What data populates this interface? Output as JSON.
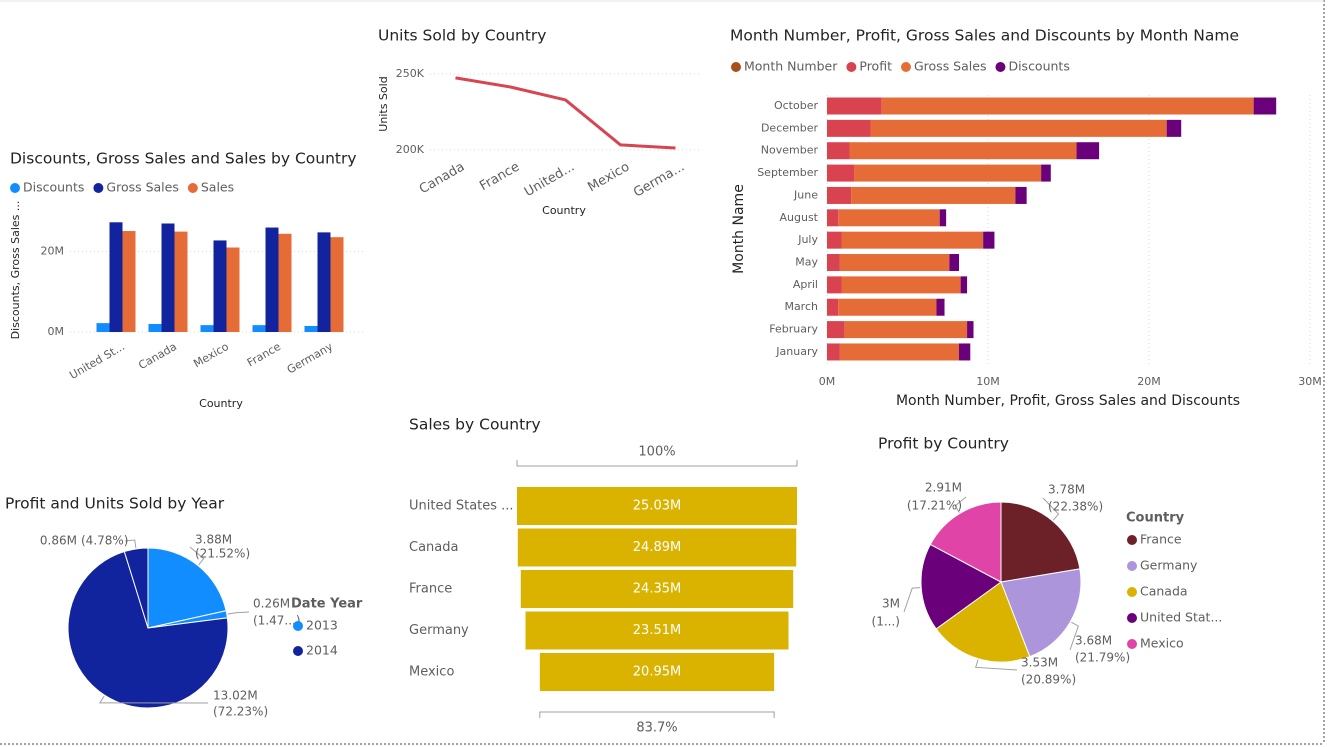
{
  "chart_data": [
    {
      "type": "bar",
      "title": "Discounts, Gross Sales and Sales by Country",
      "x_label": "Country",
      "y_label": "Discounts, Gross Sales ...",
      "categories": [
        "United St...",
        "Canada",
        "Mexico",
        "France",
        "Germany"
      ],
      "series": [
        {
          "name": "Discounts",
          "color": "#118dff",
          "values": [
            2.2,
            2.0,
            1.7,
            1.7,
            1.5
          ]
        },
        {
          "name": "Gross Sales",
          "color": "#12239e",
          "values": [
            27.2,
            26.9,
            22.7,
            25.9,
            24.7
          ]
        },
        {
          "name": "Sales",
          "color": "#e66c37",
          "values": [
            25.03,
            24.89,
            20.95,
            24.35,
            23.51
          ]
        }
      ],
      "ylim": [
        0,
        30
      ],
      "yticks": [
        {
          "value": 0,
          "label": "0M"
        },
        {
          "value": 20,
          "label": "20M"
        }
      ],
      "grid": true,
      "legend": "top-left"
    },
    {
      "type": "line",
      "title": "Units Sold by Country",
      "x_label": "Country",
      "y_label": "Units Sold",
      "categories": [
        "Canada",
        "France",
        "United...",
        "Mexico",
        "Germa..."
      ],
      "values": [
        247.4,
        241.4,
        232.9,
        203.3,
        201.3
      ],
      "color": "#d64550",
      "ylim": [
        196,
        258
      ],
      "yticks": [
        {
          "value": 200,
          "label": "200K"
        },
        {
          "value": 250,
          "label": "250K"
        }
      ],
      "grid": true
    },
    {
      "type": "barh",
      "title": "Month Number, Profit, Gross Sales and Discounts by Month Name",
      "x_label": "Month Number, Profit, Gross Sales and Discounts",
      "y_label": "Month Name",
      "categories": [
        "October",
        "December",
        "November",
        "September",
        "June",
        "August",
        "July",
        "May",
        "April",
        "March",
        "February",
        "January"
      ],
      "series": [
        {
          "name": "Month Number",
          "color": "#a6501e",
          "values": [
            0,
            0,
            0,
            0,
            0,
            0,
            0,
            0,
            0,
            0,
            0,
            0
          ]
        },
        {
          "name": "Profit",
          "color": "#d9434f",
          "values": [
            3.4,
            2.7,
            1.4,
            1.7,
            1.5,
            0.7,
            0.9,
            0.8,
            0.9,
            0.7,
            1.1,
            0.8
          ]
        },
        {
          "name": "Gross Sales",
          "color": "#e66c37",
          "values": [
            23.1,
            18.4,
            14.1,
            11.6,
            10.2,
            6.3,
            8.8,
            6.8,
            7.4,
            6.1,
            7.6,
            7.4
          ]
        },
        {
          "name": "Discounts",
          "color": "#6b007b",
          "values": [
            1.4,
            0.9,
            1.4,
            0.6,
            0.7,
            0.4,
            0.7,
            0.6,
            0.4,
            0.5,
            0.4,
            0.7
          ]
        }
      ],
      "xlim": [
        0,
        30
      ],
      "xticks": [
        {
          "value": 0,
          "label": "0M"
        },
        {
          "value": 10,
          "label": "10M"
        },
        {
          "value": 20,
          "label": "20M"
        },
        {
          "value": 30,
          "label": "30M"
        }
      ],
      "grid": true,
      "legend": "top-left"
    },
    {
      "type": "pie",
      "title": "Profit and Units Sold by Year",
      "values": [
        3.88,
        0.26,
        13.02,
        0.86
      ],
      "value_labels": [
        "3.88M",
        "0.26M",
        "13.02M",
        "0.86M"
      ],
      "percent_labels": [
        "(21.52%)",
        "(1.47...)",
        "(72.23%)",
        "(4.78%)"
      ],
      "colors": [
        "#118dff",
        "#118dff",
        "#12239e",
        "#12239e"
      ],
      "legend_title": "Date Year",
      "legend_items": [
        {
          "name": "2013",
          "color": "#118dff"
        },
        {
          "name": "2014",
          "color": "#12239e"
        }
      ]
    },
    {
      "type": "funnel",
      "title": "Sales by Country",
      "categories": [
        "United States ...",
        "Canada",
        "France",
        "Germany",
        "Mexico"
      ],
      "values": [
        25.03,
        24.89,
        24.35,
        23.51,
        20.95
      ],
      "value_labels": [
        "25.03M",
        "24.89M",
        "24.35M",
        "23.51M",
        "20.95M"
      ],
      "color": "#d9b300",
      "top_label": "100%",
      "bottom_label": "83.7%"
    },
    {
      "type": "pie",
      "title": "Profit by Country",
      "categories": [
        "France",
        "Germany",
        "Canada",
        "United Stat...",
        "Mexico"
      ],
      "values": [
        3.78,
        3.68,
        3.53,
        3,
        2.91
      ],
      "value_labels": [
        "3.78M",
        "3.68M",
        "3.53M",
        "3M",
        "2.91M"
      ],
      "percent_labels": [
        "(22.38%)",
        "(21.79%)",
        "(20.89%)",
        "(1...)",
        "(17.21%)"
      ],
      "colors": [
        "#6b2127",
        "#ad95dc",
        "#d9b300",
        "#6b007b",
        "#e044a7"
      ],
      "legend_title": "Country"
    }
  ]
}
